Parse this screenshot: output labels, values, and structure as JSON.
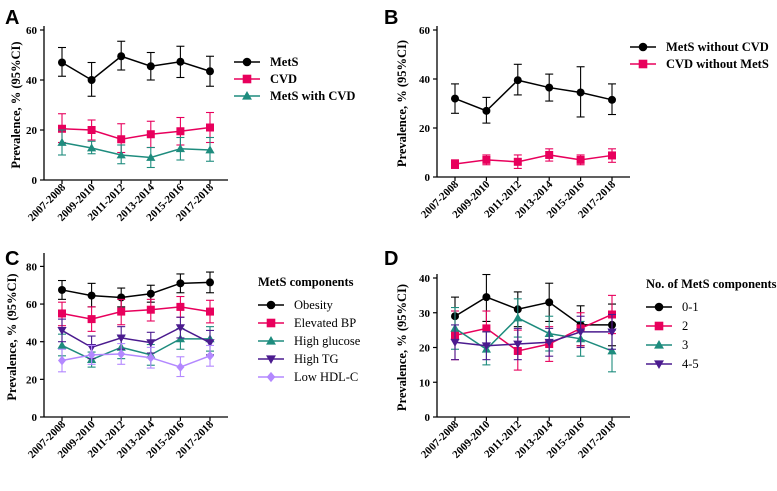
{
  "categories": [
    "2007-2008",
    "2009-2010",
    "2011-2012",
    "2013-2014",
    "2015-2016",
    "2017-2018"
  ],
  "chart_data": [
    {
      "panel": "A",
      "type": "line",
      "ylabel": "Prevalence, % (95%CI)",
      "ylim": [
        0,
        60
      ],
      "yticks": [
        "0",
        "20",
        "40",
        "60"
      ],
      "legend_bold": true,
      "series": [
        {
          "name": "MetS",
          "color": "#000000",
          "marker": "circle",
          "values": [
            47.0,
            40.0,
            49.5,
            45.5,
            47.3,
            43.5
          ],
          "lower": [
            41.5,
            33.5,
            44.0,
            40.0,
            41.0,
            37.5
          ],
          "upper": [
            53.0,
            47.0,
            55.5,
            51.0,
            53.5,
            49.5
          ]
        },
        {
          "name": "CVD",
          "color": "#e8005c",
          "marker": "square",
          "values": [
            20.5,
            20.0,
            16.3,
            18.3,
            19.5,
            21.0
          ],
          "lower": [
            15.0,
            16.0,
            11.0,
            13.0,
            14.0,
            15.0
          ],
          "upper": [
            26.5,
            24.0,
            22.5,
            23.5,
            25.0,
            27.0
          ]
        },
        {
          "name": "MetS with CVD",
          "color": "#1e8c7e",
          "marker": "triangle",
          "values": [
            15.0,
            12.8,
            10.0,
            9.0,
            12.5,
            12.0
          ],
          "lower": [
            10.0,
            10.5,
            6.5,
            5.0,
            8.0,
            7.5
          ],
          "upper": [
            20.0,
            15.5,
            14.0,
            13.0,
            17.0,
            17.0
          ]
        }
      ]
    },
    {
      "panel": "B",
      "type": "line",
      "ylabel": "Prevalence, % (95%CI)",
      "ylim": [
        0,
        60
      ],
      "yticks": [
        "0",
        "20",
        "40",
        "60"
      ],
      "legend_bold": true,
      "series": [
        {
          "name": "MetS without CVD",
          "color": "#000000",
          "marker": "circle",
          "values": [
            32.0,
            27.0,
            39.5,
            36.5,
            34.5,
            31.5
          ],
          "lower": [
            26.0,
            22.0,
            33.5,
            31.0,
            24.5,
            25.5
          ],
          "upper": [
            38.0,
            32.5,
            46.0,
            42.0,
            45.0,
            38.0
          ]
        },
        {
          "name": "CVD without MetS",
          "color": "#e8005c",
          "marker": "square",
          "values": [
            5.3,
            7.0,
            6.2,
            9.0,
            7.0,
            8.8
          ],
          "lower": [
            3.5,
            5.0,
            3.5,
            6.5,
            5.0,
            6.0
          ],
          "upper": [
            7.0,
            9.0,
            9.0,
            11.5,
            9.0,
            11.5
          ]
        }
      ]
    },
    {
      "panel": "C",
      "type": "line",
      "ylabel": "Prevalence, % (95%CI)",
      "ylim": [
        0,
        85
      ],
      "yticks": [
        "0",
        "20",
        "40",
        "60",
        "80"
      ],
      "legend_title": "MetS components",
      "legend_bold": false,
      "series": [
        {
          "name": "Obesity",
          "color": "#000000",
          "marker": "circle",
          "values": [
            67.5,
            64.5,
            63.5,
            65.5,
            71.0,
            71.5
          ],
          "lower": [
            62.5,
            58.5,
            58.5,
            61.0,
            66.0,
            66.0
          ],
          "upper": [
            72.5,
            71.0,
            68.5,
            70.0,
            76.0,
            77.0
          ]
        },
        {
          "name": "Elevated BP",
          "color": "#e8005c",
          "marker": "square",
          "values": [
            55.0,
            52.0,
            56.0,
            57.0,
            58.5,
            56.0
          ],
          "lower": [
            48.5,
            45.5,
            49.0,
            51.0,
            53.0,
            50.0
          ],
          "upper": [
            61.0,
            58.5,
            62.5,
            62.5,
            64.0,
            62.0
          ]
        },
        {
          "name": "High glucose",
          "color": "#1e8c7e",
          "marker": "triangle",
          "values": [
            38.0,
            30.5,
            37.0,
            33.0,
            41.5,
            41.5
          ],
          "lower": [
            32.5,
            26.5,
            31.0,
            27.5,
            36.0,
            35.0
          ],
          "upper": [
            44.0,
            34.5,
            43.0,
            38.5,
            47.0,
            48.0
          ]
        },
        {
          "name": "High TG",
          "color": "#4b1b8f",
          "marker": "triangle-down",
          "values": [
            46.0,
            37.0,
            42.0,
            39.5,
            47.5,
            39.5
          ],
          "lower": [
            40.0,
            31.0,
            36.0,
            34.0,
            42.0,
            33.0
          ],
          "upper": [
            52.0,
            43.0,
            48.0,
            45.0,
            53.0,
            46.0
          ]
        },
        {
          "name": "Low HDL-C",
          "color": "#b388ff",
          "marker": "diamond",
          "values": [
            30.0,
            33.0,
            33.5,
            31.5,
            26.5,
            32.5
          ],
          "lower": [
            24.0,
            28.0,
            28.0,
            26.0,
            21.5,
            27.0
          ],
          "upper": [
            36.0,
            38.0,
            39.0,
            37.0,
            32.0,
            38.0
          ]
        }
      ]
    },
    {
      "panel": "D",
      "type": "line",
      "ylabel": "Prevalence, % (95%CI)",
      "ylim": [
        0,
        40
      ],
      "yticks": [
        "0",
        "10",
        "20",
        "30",
        "40"
      ],
      "legend_title": "No. of MetS components",
      "legend_bold": false,
      "series": [
        {
          "name": "0-1",
          "color": "#000000",
          "marker": "circle",
          "values": [
            29.0,
            34.5,
            31.0,
            33.0,
            26.5,
            26.5
          ],
          "lower": [
            23.5,
            27.5,
            26.0,
            27.5,
            20.5,
            20.5
          ],
          "upper": [
            34.5,
            41.0,
            36.0,
            38.5,
            32.0,
            32.5
          ]
        },
        {
          "name": "2",
          "color": "#e8005c",
          "marker": "square",
          "values": [
            23.5,
            25.5,
            19.0,
            21.0,
            25.5,
            29.5
          ],
          "lower": [
            16.5,
            20.5,
            13.5,
            16.0,
            20.5,
            24.0
          ],
          "upper": [
            30.5,
            30.5,
            25.0,
            26.0,
            30.0,
            35.0
          ]
        },
        {
          "name": "3",
          "color": "#1e8c7e",
          "marker": "triangle",
          "values": [
            25.5,
            19.5,
            28.5,
            24.0,
            22.5,
            19.0
          ],
          "lower": [
            19.5,
            15.0,
            23.0,
            19.0,
            17.5,
            13.0
          ],
          "upper": [
            31.5,
            24.5,
            34.0,
            29.0,
            27.5,
            25.0
          ]
        },
        {
          "name": "4-5",
          "color": "#4b1b8f",
          "marker": "triangle-down",
          "values": [
            21.5,
            20.5,
            21.0,
            21.5,
            24.5,
            24.5
          ],
          "lower": [
            16.5,
            16.5,
            16.5,
            17.5,
            20.0,
            19.5
          ],
          "upper": [
            26.5,
            24.5,
            25.5,
            25.5,
            29.0,
            29.5
          ]
        }
      ]
    }
  ]
}
